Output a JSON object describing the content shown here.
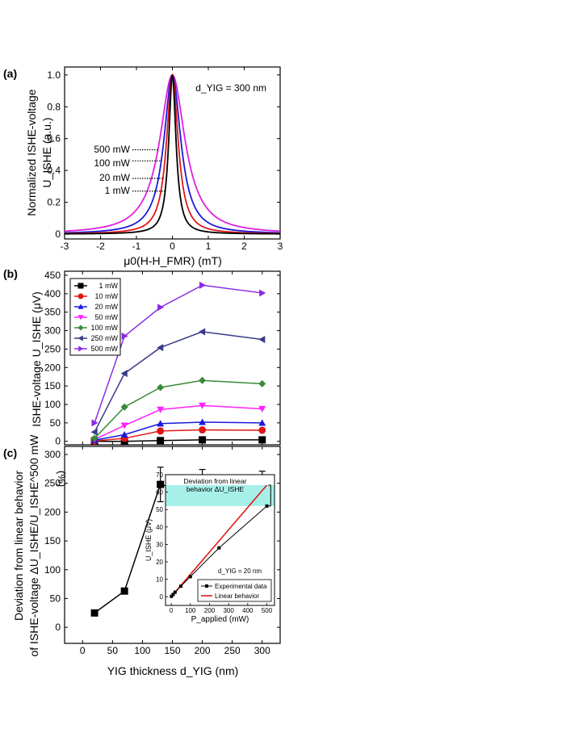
{
  "chart_data": [
    {
      "panel": "(a)",
      "type": "line",
      "ylabel_line1": "Normalized ISHE-voltage",
      "ylabel_line2": "U_ISHE (a.u.)",
      "xlabel": "μ0(H-H_FMR) (mT)",
      "annotation": "d_YIG = 300 nm",
      "xlim": [
        -3,
        3
      ],
      "ylim": [
        0,
        1.05
      ],
      "xticks": [
        "-3",
        "-2",
        "-1",
        "0",
        "1",
        "2",
        "3"
      ],
      "yticks": [
        "0",
        "0.2",
        "0.4",
        "0.6",
        "0.8",
        "1.0"
      ],
      "series": [
        {
          "name": "500 mW",
          "color": "#e020e0",
          "gamma": 0.42
        },
        {
          "name": "100 mW",
          "color": "#1a1adc",
          "gamma": 0.28
        },
        {
          "name": "20 mW",
          "color": "#e01818",
          "gamma": 0.19
        },
        {
          "name": "1 mW",
          "color": "#000000",
          "gamma": 0.12
        }
      ],
      "labels": [
        {
          "text": "500 mW",
          "color": "#e020e0",
          "y": 0.53
        },
        {
          "text": "100 mW",
          "color": "#1a1adc",
          "y": 0.46
        },
        {
          "text": "20 mW",
          "color": "#e01818",
          "y": 0.35
        },
        {
          "text": "1 mW",
          "color": "#000000",
          "y": 0.27
        }
      ]
    },
    {
      "panel": "(b)",
      "type": "line",
      "ylabel": "ISHE-voltage U_ISHE (μV)",
      "xlim": [
        -30,
        330
      ],
      "ylim": [
        -5,
        450
      ],
      "yticks": [
        "0",
        "50",
        "100",
        "150",
        "200",
        "250",
        "300",
        "350",
        "400",
        "450"
      ],
      "x": [
        20,
        70,
        130,
        200,
        300
      ],
      "series": [
        {
          "name": "1 mW",
          "color": "#000000",
          "marker": "square",
          "values": [
            0,
            0,
            2,
            4,
            4
          ]
        },
        {
          "name": "10 mW",
          "color": "#e01818",
          "marker": "circle",
          "values": [
            1,
            8,
            28,
            31,
            30
          ]
        },
        {
          "name": "20 mW",
          "color": "#1a1adc",
          "marker": "triangle-up",
          "values": [
            3,
            18,
            48,
            52,
            50
          ]
        },
        {
          "name": "50 mW",
          "color": "#ff22ff",
          "marker": "triangle-down",
          "values": [
            5,
            43,
            86,
            97,
            88
          ]
        },
        {
          "name": "100 mW",
          "color": "#3a8a3a",
          "marker": "diamond",
          "values": [
            8,
            93,
            146,
            165,
            156
          ]
        },
        {
          "name": "250 mW",
          "color": "#3a3a8a",
          "marker": "triangle-left",
          "values": [
            25,
            184,
            254,
            297,
            276
          ]
        },
        {
          "name": "500 mW",
          "color": "#8a2be2",
          "marker": "triangle-right",
          "values": [
            50,
            285,
            363,
            423,
            402
          ]
        }
      ]
    },
    {
      "panel": "(c)",
      "type": "line",
      "ylabel_line1": "Deviation from linear behavior",
      "ylabel_line2": "of ISHE-voltage ΔU_ISHE/U_ISHE^500 mW",
      "ylabel_unit": "(%)",
      "xlabel": "YIG thickness d_YIG (nm)",
      "xlim": [
        -30,
        330
      ],
      "ylim": [
        -25,
        300
      ],
      "xticks": [
        "0",
        "50",
        "100",
        "150",
        "200",
        "250",
        "300"
      ],
      "yticks": [
        "0",
        "50",
        "100",
        "150",
        "200",
        "250",
        "300"
      ],
      "x": [
        20,
        70,
        130,
        200,
        300
      ],
      "values": [
        25,
        63,
        248,
        229,
        233
      ],
      "errors": [
        0,
        0,
        30,
        45,
        38
      ],
      "inset": {
        "ylabel": "U_ISHE (μV)",
        "xlabel": "P_applied (mW)",
        "xlim": [
          -30,
          540
        ],
        "ylim": [
          -5,
          70
        ],
        "xticks": [
          "0",
          "100",
          "200",
          "300",
          "400",
          "500"
        ],
        "yticks": [
          "0",
          "10",
          "20",
          "30",
          "40",
          "50",
          "60",
          "70"
        ],
        "annotation": "d_YIG = 20 nm",
        "box_text_line1": "Deviation from linear",
        "box_text_line2": "behavior ΔU_ISHE",
        "box_color": "#a6f0e8",
        "x": [
          1,
          10,
          20,
          50,
          100,
          250,
          500
        ],
        "values": [
          0.2,
          1.3,
          2.6,
          6.0,
          11.5,
          28.0,
          52.0
        ],
        "linear_slope": 0.128,
        "legend": [
          "Experimental data",
          "Linear behavior"
        ]
      }
    }
  ]
}
